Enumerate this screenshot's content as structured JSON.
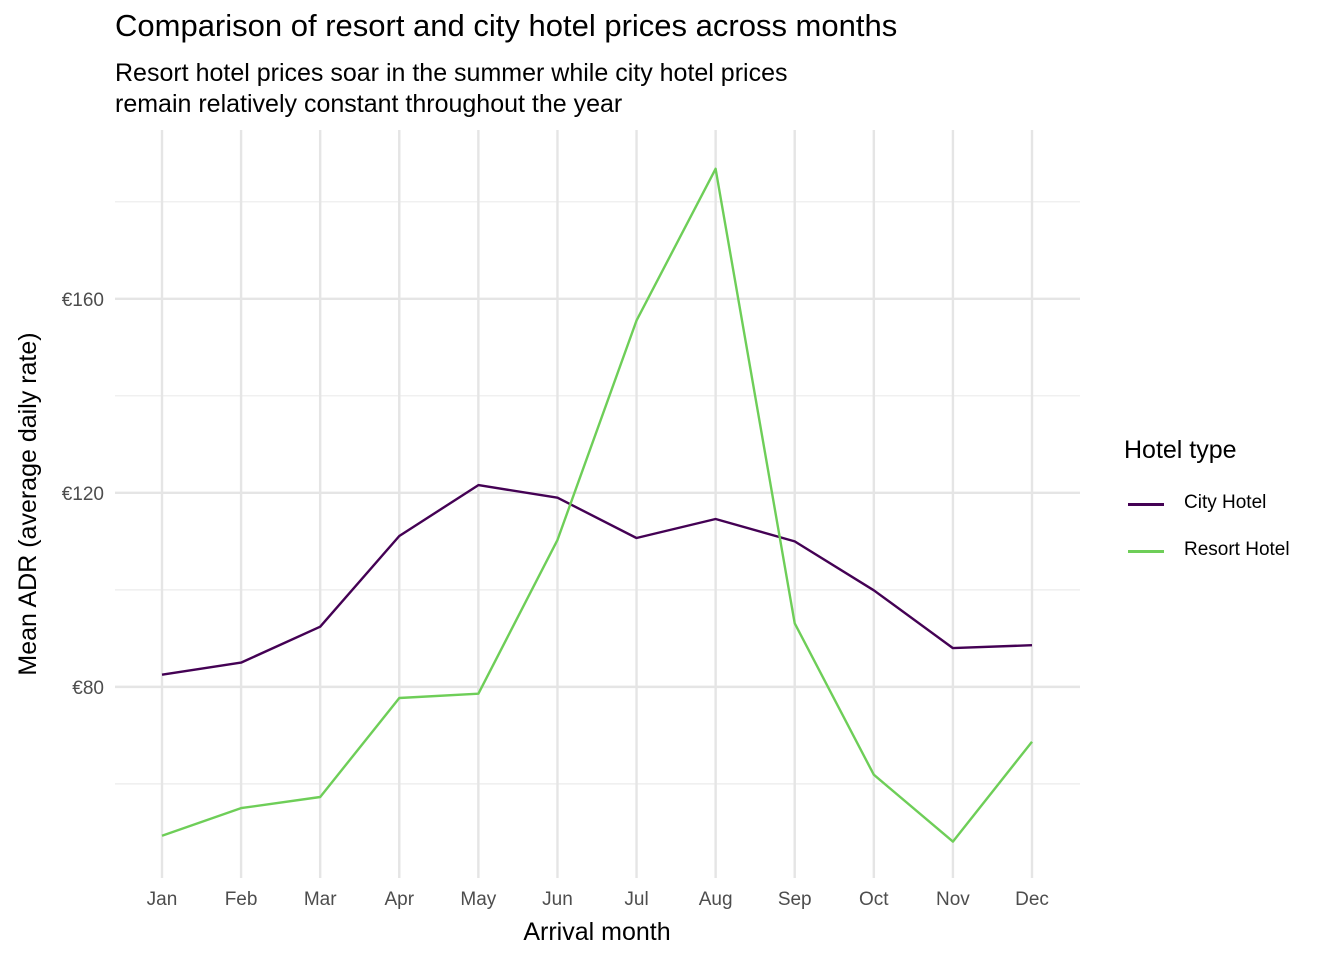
{
  "chart_data": {
    "type": "line",
    "title": "Comparison of resort and city hotel prices across months",
    "subtitle_lines": [
      "Resort hotel prices soar in the summer while city hotel prices",
      "remain relatively constant throughout the year"
    ],
    "xlabel": "Arrival month",
    "ylabel": "Mean ADR (average daily rate)",
    "categories": [
      "Jan",
      "Feb",
      "Mar",
      "Apr",
      "May",
      "Jun",
      "Jul",
      "Aug",
      "Sep",
      "Oct",
      "Nov",
      "Dec"
    ],
    "y_ticks": [
      80,
      120,
      160
    ],
    "y_tick_labels": [
      "€80",
      "€120",
      "€160"
    ],
    "y_minor_ticks": [
      60,
      100,
      140,
      180
    ],
    "ylim": [
      40.6,
      194.8
    ],
    "grid": true,
    "legend": {
      "title": "Hotel type",
      "placement": "right"
    },
    "series": [
      {
        "name": "City Hotel",
        "color": "#440154",
        "values": [
          82.5,
          85.0,
          92.4,
          111.1,
          121.6,
          119.0,
          110.7,
          114.6,
          110.0,
          99.9,
          88.0,
          88.6
        ]
      },
      {
        "name": "Resort Hotel",
        "color": "#6ECE58",
        "values": [
          49.3,
          55.0,
          57.3,
          77.7,
          78.6,
          110.3,
          155.5,
          186.8,
          93.1,
          61.9,
          48.1,
          68.7
        ]
      }
    ]
  }
}
